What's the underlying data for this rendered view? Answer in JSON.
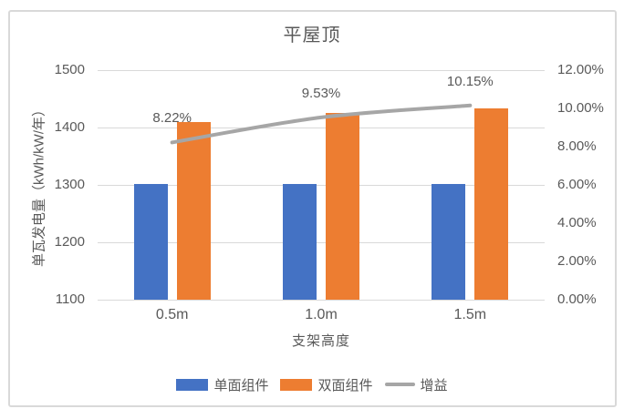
{
  "chart_data": {
    "type": "bar",
    "title": "平屋顶",
    "xlabel": "支架高度",
    "ylabel": "单瓦发电量（kWh/kW/年）",
    "categories": [
      "0.5m",
      "1.0m",
      "1.5m"
    ],
    "series": [
      {
        "name": "单面组件",
        "type": "bar",
        "axis": "left",
        "color": "#4472C4",
        "values": [
          1302,
          1302,
          1302
        ]
      },
      {
        "name": "双面组件",
        "type": "bar",
        "axis": "left",
        "color": "#ED7D31",
        "values": [
          1409,
          1426,
          1434
        ]
      },
      {
        "name": "增益",
        "type": "line",
        "axis": "right",
        "color": "#A6A6A6",
        "values": [
          8.22,
          9.53,
          10.15
        ],
        "point_labels": [
          "8.22%",
          "9.53%",
          "10.15%"
        ]
      }
    ],
    "left_axis": {
      "min": 1100,
      "max": 1500,
      "ticks": [
        "1500",
        "1400",
        "1300",
        "1200",
        "1100"
      ]
    },
    "right_axis": {
      "min": 0,
      "max": 12,
      "ticks": [
        "12.00%",
        "10.00%",
        "8.00%",
        "6.00%",
        "4.00%",
        "2.00%",
        "0.00%"
      ]
    },
    "grid": true,
    "legend_position": "bottom",
    "colors": {
      "text": "#595959",
      "grid": "#D9D9D9",
      "border": "#D9D9D9",
      "background": "#FFFFFF"
    }
  }
}
